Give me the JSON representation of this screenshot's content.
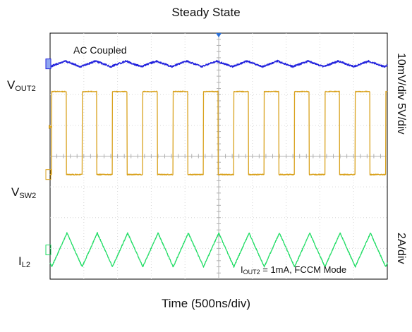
{
  "chart_data": {
    "type": "line",
    "title": "Steady State",
    "xlabel": "Time (500ns/div)",
    "annotations": {
      "coupling": "AC Coupled",
      "condition_name": "I",
      "condition_sub": "OUT2",
      "condition_text": " = 1mA, FCCM Mode"
    },
    "grid": {
      "on": true,
      "x_divisions": 10,
      "y_divisions": 8
    },
    "right_labels": {
      "scale_top": "10mV/div 5V/div",
      "scale_bottom": "2A/div"
    },
    "channels": [
      {
        "name": "V",
        "sub": "OUT2",
        "color": "#2222dd",
        "waveform": "ripple",
        "period_div": 0.9,
        "start_phase_div": 0.0,
        "baseline_div": 1.0,
        "amplitude_div": 0.18
      },
      {
        "name": "V",
        "sub": "SW2",
        "color": "#d9a21e",
        "waveform": "square",
        "period_div": 0.9,
        "start_phase_div": 0.05,
        "duty": 0.48,
        "low_div": 4.6,
        "high_div": 1.9
      },
      {
        "name": "I",
        "sub": "L2",
        "color": "#22dd66",
        "waveform": "triangle",
        "period_div": 0.9,
        "start_phase_div": 0.05,
        "baseline_div": 7.05,
        "amplitude_div": 0.55
      }
    ]
  }
}
